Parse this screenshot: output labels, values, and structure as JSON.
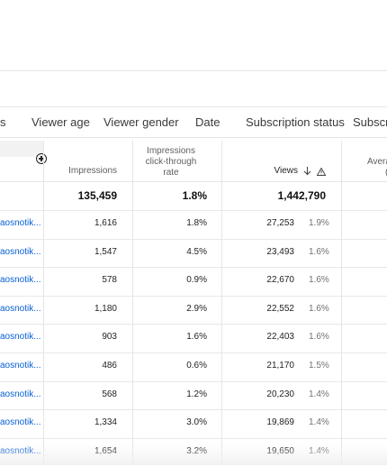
{
  "tabs": [
    "s",
    "Viewer age",
    "Viewer gender",
    "Date",
    "Subscription status",
    "Subscrip"
  ],
  "columns": {
    "impressions": "Impressions",
    "ctr": "Impressions click-through rate",
    "ctr_lines": [
      "Impressions",
      "click-through",
      "rate"
    ],
    "views": "Views",
    "avg": "Avera"
  },
  "totals": {
    "impressions": "135,459",
    "ctr": "1.8%",
    "views": "1,442,790"
  },
  "rows": [
    {
      "title": "aosnotik...",
      "impressions": "1,616",
      "ctr": "1.8%",
      "views": "27,253",
      "views_pct": "1.9%"
    },
    {
      "title": "aosnotik...",
      "impressions": "1,547",
      "ctr": "4.5%",
      "views": "23,493",
      "views_pct": "1.6%"
    },
    {
      "title": "aosnotik...",
      "impressions": "578",
      "ctr": "0.9%",
      "views": "22,670",
      "views_pct": "1.6%"
    },
    {
      "title": "aosnotik...",
      "impressions": "1,180",
      "ctr": "2.9%",
      "views": "22,552",
      "views_pct": "1.6%"
    },
    {
      "title": "aosnotik...",
      "impressions": "903",
      "ctr": "1.6%",
      "views": "22,403",
      "views_pct": "1.6%"
    },
    {
      "title": "aosnotik...",
      "impressions": "486",
      "ctr": "0.6%",
      "views": "21,170",
      "views_pct": "1.5%"
    },
    {
      "title": "aosnotik...",
      "impressions": "568",
      "ctr": "1.2%",
      "views": "20,230",
      "views_pct": "1.4%"
    },
    {
      "title": "aosnotik...",
      "impressions": "1,334",
      "ctr": "3.0%",
      "views": "19,869",
      "views_pct": "1.4%"
    },
    {
      "title": "aosnotik...",
      "impressions": "1,654",
      "ctr": "3.2%",
      "views": "19,650",
      "views_pct": "1.4%"
    }
  ],
  "icons": {
    "add_column": "add-circle-icon",
    "sort": "arrow-down-icon",
    "warning": "warning-icon"
  },
  "colors": {
    "link": "#065fd4",
    "divider": "#e5e5e5"
  }
}
